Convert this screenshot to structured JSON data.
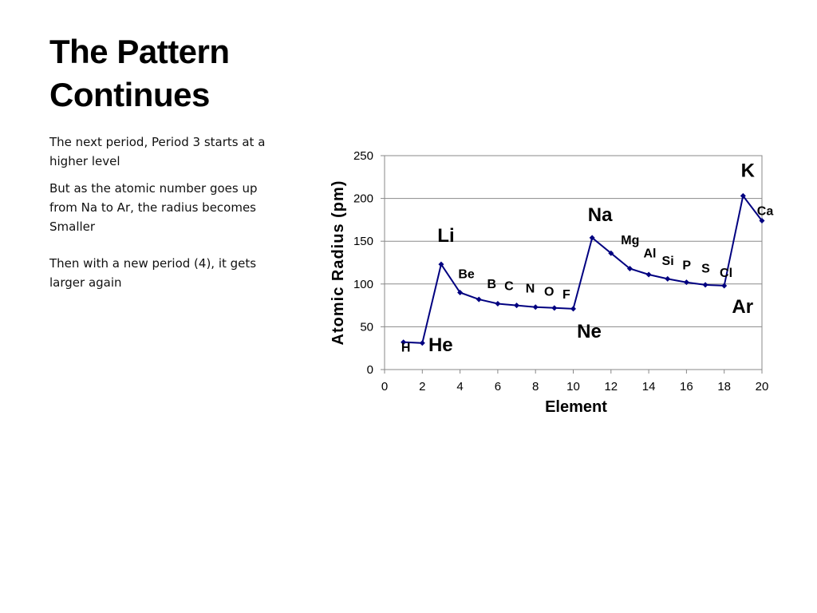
{
  "slide": {
    "title_line1": "The Pattern",
    "title_line2": "Continues",
    "paragraphs": [
      "The next period, Period 3 starts at a higher level",
      "But as the atomic number goes up from Na to Ar, the radius becomes",
      "Smaller",
      "Then with a new period (4), it gets larger again"
    ]
  },
  "chart_data": {
    "type": "line",
    "title": "",
    "xlabel": "Element",
    "ylabel": "Atomic Radius (pm)",
    "xlim": [
      0,
      20
    ],
    "ylim": [
      0,
      250
    ],
    "xticks": [
      0,
      2,
      4,
      6,
      8,
      10,
      12,
      14,
      16,
      18,
      20
    ],
    "yticks": [
      0,
      50,
      100,
      150,
      200,
      250
    ],
    "grid": "horizontal",
    "legend": "none",
    "line_color": "#000080",
    "x": [
      1,
      2,
      3,
      4,
      5,
      6,
      7,
      8,
      9,
      10,
      11,
      12,
      13,
      14,
      15,
      16,
      17,
      18,
      19,
      20
    ],
    "values": [
      32,
      31,
      123,
      90,
      82,
      77,
      75,
      73,
      72,
      71,
      154,
      136,
      118,
      111,
      106,
      102,
      99,
      98,
      203,
      174
    ],
    "labels": [
      {
        "text": "H",
        "x": 1,
        "size": "small"
      },
      {
        "text": "He",
        "x": 2,
        "size": "large"
      },
      {
        "text": "Li",
        "x": 3,
        "size": "large"
      },
      {
        "text": "Be",
        "x": 4,
        "size": "small"
      },
      {
        "text": "B",
        "x": 5,
        "size": "small"
      },
      {
        "text": "C",
        "x": 6,
        "size": "small"
      },
      {
        "text": "N",
        "x": 7,
        "size": "small"
      },
      {
        "text": "O",
        "x": 8,
        "size": "small"
      },
      {
        "text": "F",
        "x": 9,
        "size": "small"
      },
      {
        "text": "Ne",
        "x": 10,
        "size": "large"
      },
      {
        "text": "Na",
        "x": 11,
        "size": "large"
      },
      {
        "text": "Mg",
        "x": 12,
        "size": "small"
      },
      {
        "text": "Al",
        "x": 13,
        "size": "small"
      },
      {
        "text": "Si",
        "x": 14,
        "size": "small"
      },
      {
        "text": "P",
        "x": 15,
        "size": "small"
      },
      {
        "text": "S",
        "x": 16,
        "size": "small"
      },
      {
        "text": "Cl",
        "x": 17,
        "size": "small"
      },
      {
        "text": "Ar",
        "x": 18,
        "size": "large"
      },
      {
        "text": "K",
        "x": 19,
        "size": "large"
      },
      {
        "text": "Ca",
        "x": 20,
        "size": "small"
      }
    ]
  }
}
